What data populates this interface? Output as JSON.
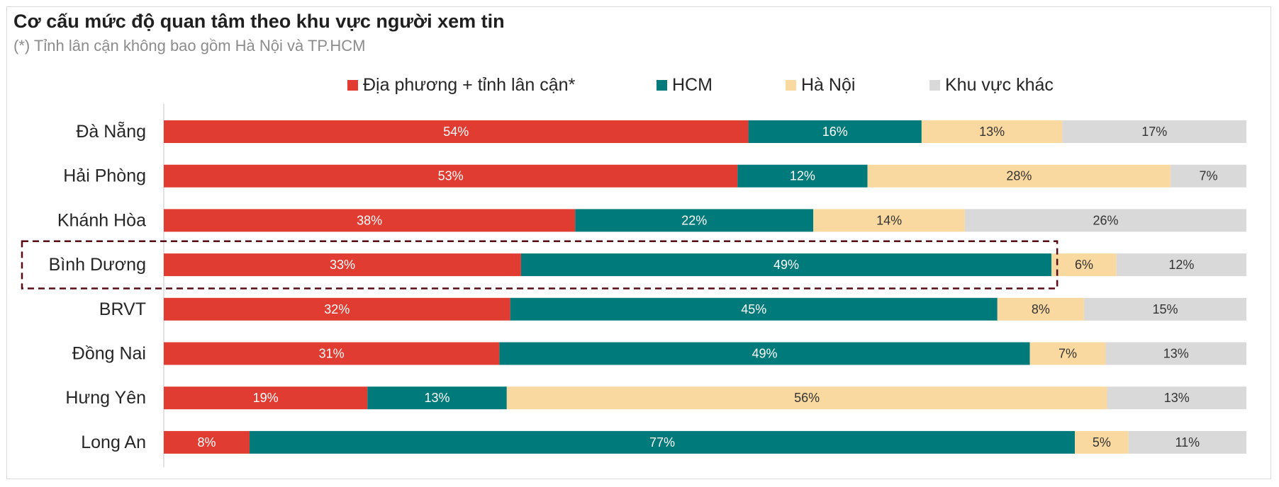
{
  "title": "Cơ cấu mức độ quan tâm theo khu vực người xem tin",
  "subtitle": "(*) Tỉnh lân cận không bao gồm Hà Nội và TP.HCM",
  "colors": {
    "local": "#e03c31",
    "hcm": "#007a7a",
    "hanoi": "#f9d9a0",
    "other": "#d9d9d9",
    "highlight": "#5a0a14"
  },
  "legend": [
    {
      "label": "Địa phương + tỉnh lân cận*",
      "color": "#e03c31"
    },
    {
      "label": "HCM",
      "color": "#007a7a"
    },
    {
      "label": "Hà Nội",
      "color": "#f9d9a0"
    },
    {
      "label": "Khu vực khác",
      "color": "#d9d9d9"
    }
  ],
  "chart_data": {
    "type": "bar",
    "orientation": "horizontal",
    "stacked": true,
    "normalized": true,
    "title": "Cơ cấu mức độ quan tâm theo khu vực người xem tin",
    "subtitle": "(*) Tỉnh lân cận không bao gồm Hà Nội và TP.HCM",
    "categories": [
      "Đà Nẵng",
      "Hải Phòng",
      "Khánh Hòa",
      "Bình Dương",
      "BRVT",
      "Đồng Nai",
      "Hưng Yên",
      "Long An"
    ],
    "series": [
      {
        "name": "Địa phương + tỉnh lân cận*",
        "values": [
          54,
          53,
          38,
          33,
          32,
          31,
          19,
          8
        ]
      },
      {
        "name": "HCM",
        "values": [
          16,
          12,
          22,
          49,
          45,
          49,
          13,
          77
        ]
      },
      {
        "name": "Hà Nội",
        "values": [
          13,
          28,
          14,
          6,
          8,
          7,
          56,
          5
        ]
      },
      {
        "name": "Khu vực khác",
        "values": [
          17,
          7,
          26,
          12,
          15,
          13,
          13,
          11
        ]
      }
    ],
    "value_format": "{v}%",
    "legend_position": "top",
    "highlighted_category": "Bình Dương",
    "grid": false
  }
}
